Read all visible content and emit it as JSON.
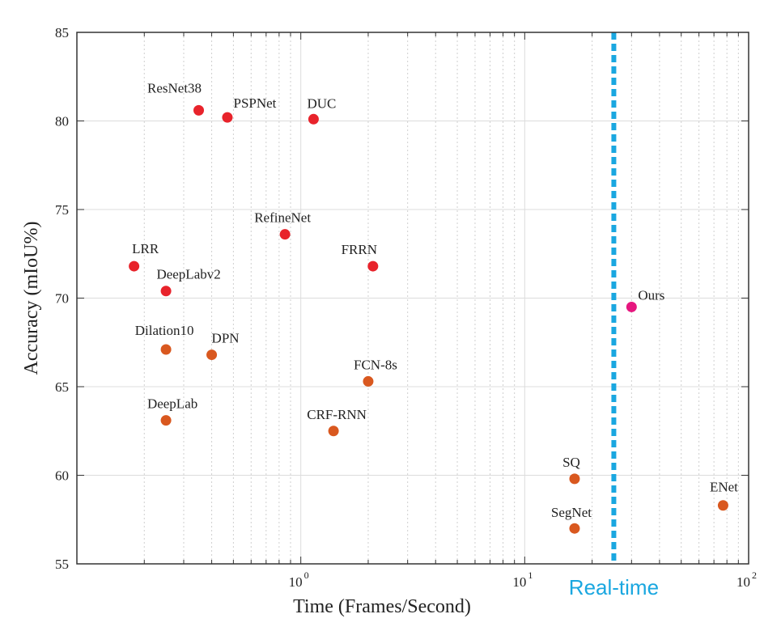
{
  "chart_data": {
    "type": "scatter",
    "xlabel": "Time (Frames/Second)",
    "ylabel": "Accuracy (mIoU%)",
    "x_scale": "log",
    "xlim": [
      0.1,
      100
    ],
    "ylim": [
      55,
      85
    ],
    "x_ticks": [
      1,
      10,
      100
    ],
    "x_tick_labels": [
      {
        "base": "10",
        "exp": "0"
      },
      {
        "base": "10",
        "exp": "1"
      },
      {
        "base": "10",
        "exp": "2"
      }
    ],
    "y_ticks": [
      55,
      60,
      65,
      70,
      75,
      80,
      85
    ],
    "grid": true,
    "threshold": {
      "x": 25,
      "label": "Real-time",
      "color": "#1aa7e0"
    },
    "colors": {
      "high": "#e8232b",
      "mid": "#d9581f",
      "ours": "#e6177f"
    },
    "points": [
      {
        "name": "ResNet38",
        "x": 0.35,
        "y": 80.6,
        "group": "high"
      },
      {
        "name": "PSPNet",
        "x": 0.47,
        "y": 80.2,
        "group": "high"
      },
      {
        "name": "DUC",
        "x": 1.14,
        "y": 80.1,
        "group": "high"
      },
      {
        "name": "RefineNet",
        "x": 0.85,
        "y": 73.6,
        "group": "high"
      },
      {
        "name": "LRR",
        "x": 0.18,
        "y": 71.8,
        "group": "high"
      },
      {
        "name": "FRRN",
        "x": 2.1,
        "y": 71.8,
        "group": "high"
      },
      {
        "name": "DeepLabv2",
        "x": 0.25,
        "y": 70.4,
        "group": "high"
      },
      {
        "name": "Ours",
        "x": 30,
        "y": 69.5,
        "group": "ours"
      },
      {
        "name": "Dilation10",
        "x": 0.25,
        "y": 67.1,
        "group": "mid"
      },
      {
        "name": "DPN",
        "x": 0.4,
        "y": 66.8,
        "group": "mid"
      },
      {
        "name": "FCN-8s",
        "x": 2.0,
        "y": 65.3,
        "group": "mid"
      },
      {
        "name": "DeepLab",
        "x": 0.25,
        "y": 63.1,
        "group": "mid"
      },
      {
        "name": "CRF-RNN",
        "x": 1.4,
        "y": 62.5,
        "group": "mid"
      },
      {
        "name": "SQ",
        "x": 16.7,
        "y": 59.8,
        "group": "mid"
      },
      {
        "name": "SegNet",
        "x": 16.7,
        "y": 57.0,
        "group": "mid"
      },
      {
        "name": "ENet",
        "x": 76.9,
        "y": 58.3,
        "group": "mid"
      }
    ]
  }
}
